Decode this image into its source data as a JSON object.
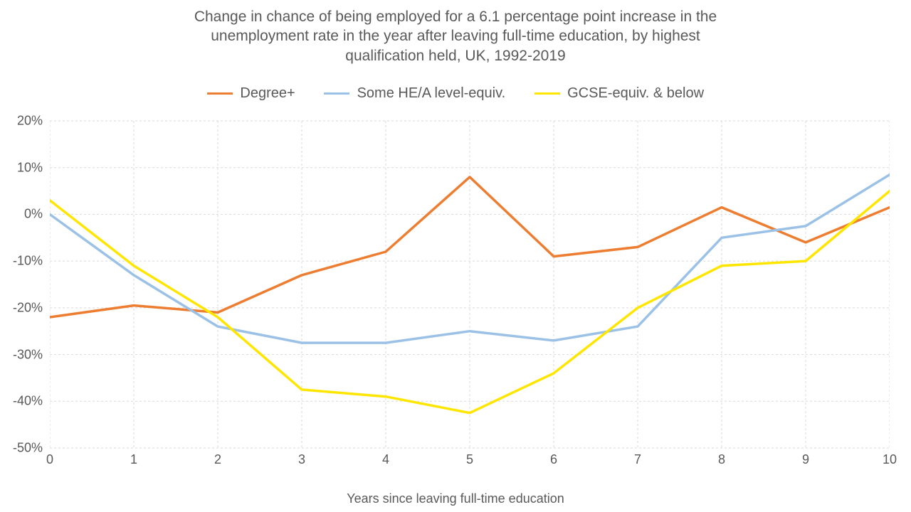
{
  "chart": {
    "type": "line",
    "title_lines": [
      "Change in chance of being employed for a 6.1 percentage point increase in the",
      "unemployment rate in the year after leaving full-time education, by highest",
      "qualification held, UK, 1992-2019"
    ],
    "title_fontsize": 21,
    "title_color": "#595959",
    "xlabel": "Years since leaving full-time education",
    "axis_label_fontsize": 18,
    "axis_label_color": "#595959",
    "tick_fontsize": 18,
    "tick_color": "#595959",
    "legend_fontsize": 20,
    "background_color": "#ffffff",
    "grid_color": "#d9d9d9",
    "grid_dash": "3,3",
    "line_width": 3.5,
    "x": {
      "min": 0,
      "max": 10,
      "tick_step": 1,
      "ticks": [
        0,
        1,
        2,
        3,
        4,
        5,
        6,
        7,
        8,
        9,
        10
      ]
    },
    "y": {
      "min": -50,
      "max": 20,
      "tick_step": 10,
      "ticks": [
        -50,
        -40,
        -30,
        -20,
        -10,
        0,
        10,
        20
      ],
      "tick_labels": [
        "-50%",
        "-40%",
        "-30%",
        "-20%",
        "-10%",
        "0%",
        "10%",
        "20%"
      ]
    },
    "series": [
      {
        "name": "Degree+",
        "color": "#ed7d31",
        "x": [
          0,
          1,
          2,
          3,
          4,
          5,
          6,
          7,
          8,
          9,
          10
        ],
        "y": [
          -22,
          -19.5,
          -21,
          -13,
          -8,
          8,
          -9,
          -7,
          1.5,
          -6,
          1.5
        ]
      },
      {
        "name": "Some HE/A level-equiv.",
        "color": "#9bc2e6",
        "x": [
          0,
          1,
          2,
          3,
          4,
          5,
          6,
          7,
          8,
          9,
          10
        ],
        "y": [
          0,
          -13,
          -24,
          -27.5,
          -27.5,
          -25,
          -27,
          -24,
          -5,
          -2.5,
          8.5
        ]
      },
      {
        "name": "GCSE-equiv. & below",
        "color": "#ffe600",
        "x": [
          0,
          1,
          2,
          3,
          4,
          5,
          6,
          7,
          8,
          9,
          10
        ],
        "y": [
          3,
          -11,
          -22,
          -37.5,
          -39,
          -42.5,
          -34,
          -20,
          -11,
          -10,
          5
        ]
      }
    ]
  }
}
